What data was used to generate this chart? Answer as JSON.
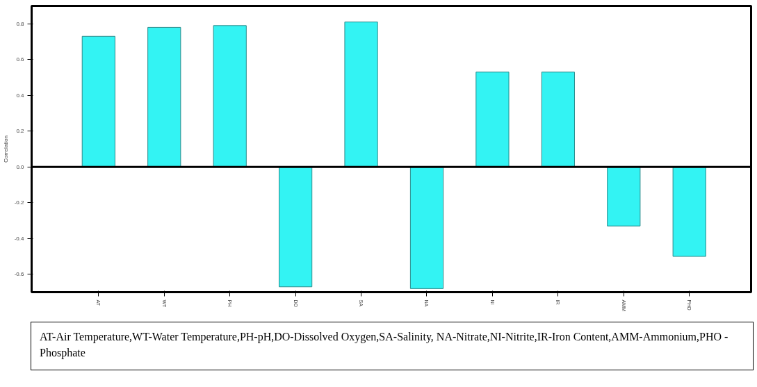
{
  "chart_data": {
    "type": "bar",
    "ylabel": "Correlation",
    "categories": [
      "AT",
      "WT",
      "PH",
      "DO",
      "SA",
      "NA",
      "NI",
      "IR",
      "AMM",
      "PHO"
    ],
    "values": [
      0.73,
      0.78,
      0.79,
      -0.67,
      0.81,
      -0.68,
      0.53,
      0.53,
      -0.33,
      -0.5
    ],
    "color": "#33f3f3",
    "ylim": [
      -0.7,
      0.9
    ],
    "yticks": [
      -0.6,
      -0.4,
      -0.2,
      {
        "value": 0,
        "label": "0.0"
      },
      0.2,
      0.4,
      0.6,
      0.8
    ],
    "ref_lines": [
      {
        "axis": "y",
        "value": 0,
        "color": "#000000"
      }
    ],
    "annotations": [
      "AT-Air Temperature,WT-Water Temperature,PH-pH,DO-Dissolved Oxygen,SA-Salinity, NA-Nitrate,NI-Nitrite,IR-Iron Content,AMM-Ammonium,PHO -Phosphate"
    ],
    "grid": false
  }
}
